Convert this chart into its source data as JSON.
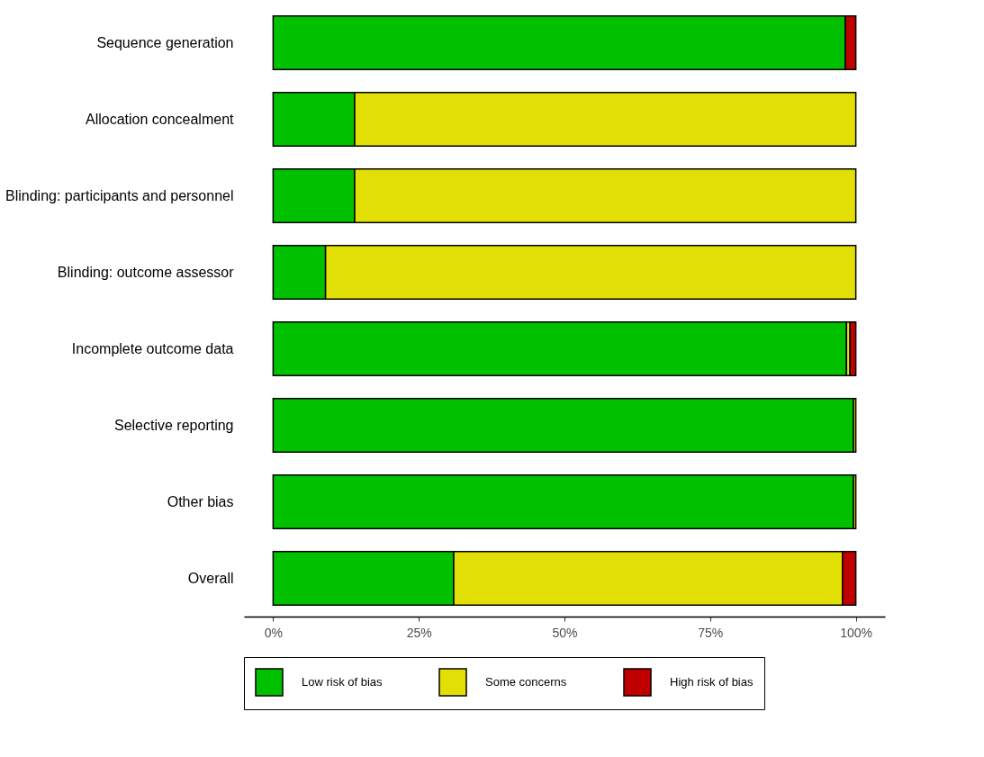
{
  "chart_data": {
    "type": "bar",
    "orientation": "horizontal",
    "stacked": true,
    "legend": "bottom",
    "grid": false,
    "categories": [
      "Sequence generation",
      "Allocation concealment",
      "Blinding: participants and personnel",
      "Blinding: outcome assessor",
      "Incomplete outcome data",
      "Selective reporting",
      "Other bias",
      "Overall"
    ],
    "series": [
      {
        "name": "Low risk of bias",
        "color": "#00c000",
        "values": [
          98.2,
          14,
          14,
          9,
          98.4,
          99.6,
          99.6,
          31
        ]
      },
      {
        "name": "Some concerns",
        "color": "#e2df07",
        "values": [
          null,
          86,
          86,
          91,
          0.6,
          0.4,
          0.4,
          66.7
        ]
      },
      {
        "name": "High risk of bias",
        "color": "#c00000",
        "values": [
          1.8,
          null,
          null,
          null,
          1.0,
          null,
          null,
          2.3
        ]
      }
    ],
    "xlim": [
      -5,
      105
    ],
    "xticks": [
      {
        "value": 0,
        "label": "0%"
      },
      {
        "value": 25,
        "label": "25%"
      },
      {
        "value": 50,
        "label": "50%"
      },
      {
        "value": 75,
        "label": "75%"
      },
      {
        "value": 100,
        "label": "100%"
      }
    ]
  }
}
